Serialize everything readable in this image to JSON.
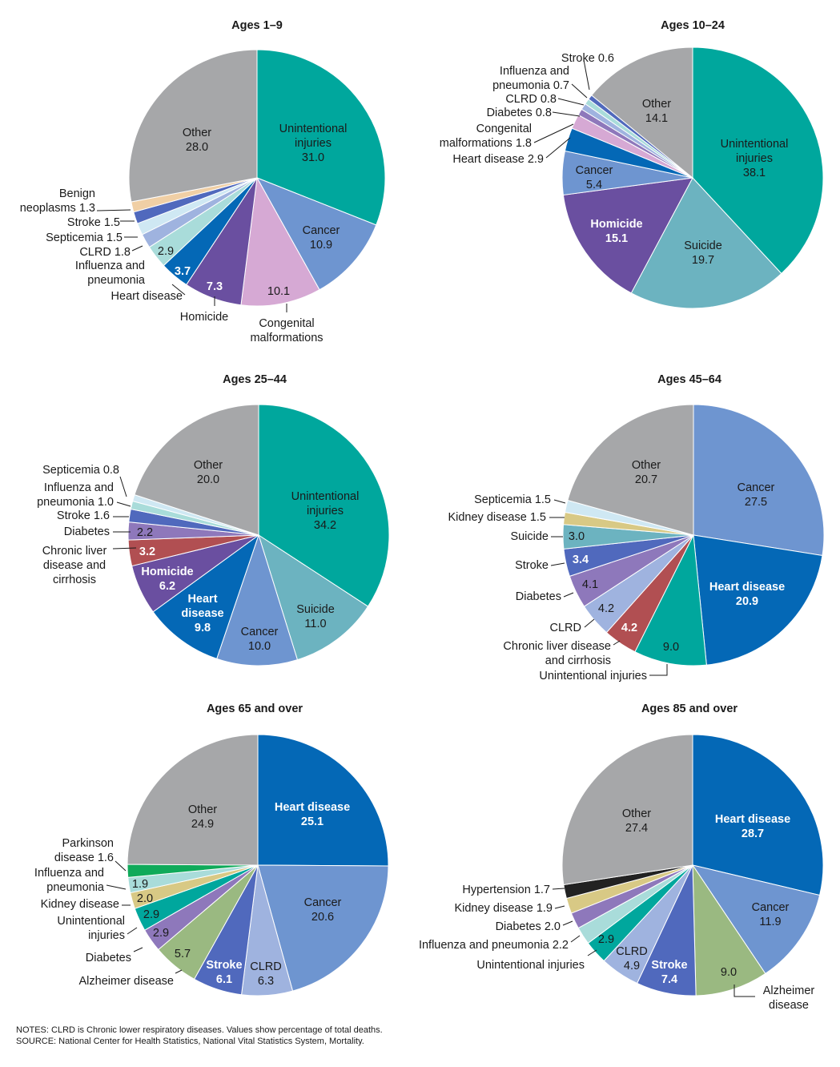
{
  "colors": {
    "Unintentional injuries": "#00a79d",
    "Cancer": "#6e95d0",
    "Congenital malformations": "#d6a9d4",
    "Homicide": "#6a4fa0",
    "Heart disease": "#0468b6",
    "Influenza and pneumonia": "#a9dcda",
    "CLRD": "#9fb3df",
    "Septicemia": "#cfe8f3",
    "Stroke": "#5069bd",
    "Benign neoplasms": "#f0cfa5",
    "Other": "#a6a7a9",
    "Suicide": "#6cb3c0",
    "Diabetes": "#8e78bb",
    "Chronic liver disease and cirrhosis": "#b14f52",
    "Kidney disease": "#d8c985",
    "Alzheimer disease": "#9ab981",
    "Parkinson disease": "#0faa5a",
    "Hypertension": "#222222"
  },
  "chart_data": [
    {
      "type": "pie",
      "title": "Ages 1–9",
      "slices": [
        {
          "label": "Unintentional injuries",
          "value": 31.0
        },
        {
          "label": "Cancer",
          "value": 10.9
        },
        {
          "label": "Congenital malformations",
          "value": 10.1
        },
        {
          "label": "Homicide",
          "value": 7.3
        },
        {
          "label": "Heart disease",
          "value": 3.7
        },
        {
          "label": "Influenza and pneumonia",
          "value": 2.9
        },
        {
          "label": "CLRD",
          "value": 1.8
        },
        {
          "label": "Septicemia",
          "value": 1.5
        },
        {
          "label": "Stroke",
          "value": 1.5
        },
        {
          "label": "Benign neoplasms",
          "value": 1.3
        },
        {
          "label": "Other",
          "value": 28.0
        }
      ],
      "texts": [
        {
          "lines": [
            "Unintentional",
            "injuries",
            "31.0"
          ]
        },
        {
          "lines": [
            "Cancer",
            "10.9"
          ]
        },
        {
          "lines": [
            "10.1"
          ]
        },
        {
          "lines": [
            "Congenital",
            "malformations"
          ]
        },
        {
          "lines": [
            "7.3"
          ]
        },
        {
          "lines": [
            "Homicide"
          ]
        },
        {
          "lines": [
            "3.7"
          ]
        },
        {
          "lines": [
            "Heart disease"
          ]
        },
        {
          "lines": [
            "2.9"
          ]
        },
        {
          "lines": [
            "Influenza and",
            "pneumonia"
          ]
        },
        {
          "lines": [
            "CLRD 1.8"
          ]
        },
        {
          "lines": [
            "Septicemia 1.5"
          ]
        },
        {
          "lines": [
            "Stroke 1.5"
          ]
        },
        {
          "lines": [
            "Benign",
            "neoplasms 1.3"
          ]
        },
        {
          "lines": [
            "Other",
            "28.0"
          ]
        }
      ]
    },
    {
      "type": "pie",
      "title": "Ages 10–24",
      "slices": [
        {
          "label": "Unintentional injuries",
          "value": 38.1
        },
        {
          "label": "Suicide",
          "value": 19.7
        },
        {
          "label": "Homicide",
          "value": 15.1
        },
        {
          "label": "Cancer",
          "value": 5.4
        },
        {
          "label": "Heart disease",
          "value": 2.9
        },
        {
          "label": "Congenital malformations",
          "value": 1.8
        },
        {
          "label": "Diabetes",
          "value": 0.8
        },
        {
          "label": "CLRD",
          "value": 0.8
        },
        {
          "label": "Influenza and pneumonia",
          "value": 0.7
        },
        {
          "label": "Stroke",
          "value": 0.6
        },
        {
          "label": "Other",
          "value": 14.1
        }
      ],
      "texts": [
        {
          "lines": [
            "Unintentional",
            "injuries",
            "38.1"
          ]
        },
        {
          "lines": [
            "Suicide",
            "19.7"
          ]
        },
        {
          "lines": [
            "Homicide",
            "15.1"
          ]
        },
        {
          "lines": [
            "Cancer",
            "5.4"
          ]
        },
        {
          "lines": [
            "Heart disease 2.9"
          ]
        },
        {
          "lines": [
            "Congenital",
            "malformations 1.8"
          ]
        },
        {
          "lines": [
            "Diabetes 0.8"
          ]
        },
        {
          "lines": [
            "CLRD 0.8"
          ]
        },
        {
          "lines": [
            "Influenza and",
            "pneumonia 0.7"
          ]
        },
        {
          "lines": [
            "Stroke 0.6"
          ]
        },
        {
          "lines": [
            "Other",
            "14.1"
          ]
        }
      ]
    },
    {
      "type": "pie",
      "title": "Ages 25–44",
      "slices": [
        {
          "label": "Unintentional injuries",
          "value": 34.2
        },
        {
          "label": "Suicide",
          "value": 11.0
        },
        {
          "label": "Cancer",
          "value": 10.0
        },
        {
          "label": "Heart disease",
          "value": 9.8
        },
        {
          "label": "Homicide",
          "value": 6.2
        },
        {
          "label": "Chronic liver disease and cirrhosis",
          "value": 3.2
        },
        {
          "label": "Diabetes",
          "value": 2.2
        },
        {
          "label": "Stroke",
          "value": 1.6
        },
        {
          "label": "Influenza and pneumonia",
          "value": 1.0
        },
        {
          "label": "Septicemia",
          "value": 0.8
        },
        {
          "label": "Other",
          "value": 20.0
        }
      ],
      "texts": [
        {
          "lines": [
            "Unintentional",
            "injuries",
            "34.2"
          ]
        },
        {
          "lines": [
            "Suicide",
            "11.0"
          ]
        },
        {
          "lines": [
            "Cancer",
            "10.0"
          ]
        },
        {
          "lines": [
            "Heart",
            "disease",
            "9.8"
          ]
        },
        {
          "lines": [
            "Homicide",
            "6.2"
          ]
        },
        {
          "lines": [
            "3.2"
          ]
        },
        {
          "lines": [
            "Chronic liver",
            "disease and",
            "cirrhosis"
          ]
        },
        {
          "lines": [
            "2.2"
          ]
        },
        {
          "lines": [
            "Diabetes"
          ]
        },
        {
          "lines": [
            "Stroke 1.6"
          ]
        },
        {
          "lines": [
            "Influenza and",
            "pneumonia 1.0"
          ]
        },
        {
          "lines": [
            "Septicemia 0.8"
          ]
        },
        {
          "lines": [
            "Other",
            "20.0"
          ]
        }
      ]
    },
    {
      "type": "pie",
      "title": "Ages 45–64",
      "slices": [
        {
          "label": "Cancer",
          "value": 27.5
        },
        {
          "label": "Heart disease",
          "value": 20.9
        },
        {
          "label": "Unintentional injuries",
          "value": 9.0
        },
        {
          "label": "Chronic liver disease and cirrhosis",
          "value": 4.2
        },
        {
          "label": "CLRD",
          "value": 4.2
        },
        {
          "label": "Diabetes",
          "value": 4.1
        },
        {
          "label": "Stroke",
          "value": 3.4
        },
        {
          "label": "Suicide",
          "value": 3.0
        },
        {
          "label": "Kidney disease",
          "value": 1.5
        },
        {
          "label": "Septicemia",
          "value": 1.5
        },
        {
          "label": "Other",
          "value": 20.7
        }
      ],
      "texts": [
        {
          "lines": [
            "Cancer",
            "27.5"
          ]
        },
        {
          "lines": [
            "Heart disease",
            "20.9"
          ]
        },
        {
          "lines": [
            "9.0"
          ]
        },
        {
          "lines": [
            "Unintentional injuries"
          ]
        },
        {
          "lines": [
            "4.2"
          ]
        },
        {
          "lines": [
            "Chronic liver disease",
            "and cirrhosis"
          ]
        },
        {
          "lines": [
            "4.2"
          ]
        },
        {
          "lines": [
            "CLRD"
          ]
        },
        {
          "lines": [
            "4.1"
          ]
        },
        {
          "lines": [
            "Diabetes"
          ]
        },
        {
          "lines": [
            "3.4"
          ]
        },
        {
          "lines": [
            "Stroke"
          ]
        },
        {
          "lines": [
            "3.0"
          ]
        },
        {
          "lines": [
            "Suicide"
          ]
        },
        {
          "lines": [
            "Kidney disease 1.5"
          ]
        },
        {
          "lines": [
            "Septicemia 1.5"
          ]
        },
        {
          "lines": [
            "Other",
            "20.7"
          ]
        }
      ]
    },
    {
      "type": "pie",
      "title": "Ages 65 and over",
      "slices": [
        {
          "label": "Heart disease",
          "value": 25.1
        },
        {
          "label": "Cancer",
          "value": 20.6
        },
        {
          "label": "CLRD",
          "value": 6.3
        },
        {
          "label": "Stroke",
          "value": 6.1
        },
        {
          "label": "Alzheimer disease",
          "value": 5.7
        },
        {
          "label": "Diabetes",
          "value": 2.9
        },
        {
          "label": "Unintentional injuries",
          "value": 2.9
        },
        {
          "label": "Kidney disease",
          "value": 2.0
        },
        {
          "label": "Influenza and pneumonia",
          "value": 1.9
        },
        {
          "label": "Parkinson disease",
          "value": 1.6
        },
        {
          "label": "Other",
          "value": 24.9
        }
      ],
      "texts": [
        {
          "lines": [
            "Heart disease",
            "25.1"
          ]
        },
        {
          "lines": [
            "Cancer",
            "20.6"
          ]
        },
        {
          "lines": [
            "CLRD",
            "6.3"
          ]
        },
        {
          "lines": [
            "Stroke",
            "6.1"
          ]
        },
        {
          "lines": [
            "5.7"
          ]
        },
        {
          "lines": [
            "Alzheimer disease"
          ]
        },
        {
          "lines": [
            "2.9"
          ]
        },
        {
          "lines": [
            "Diabetes"
          ]
        },
        {
          "lines": [
            "2.9"
          ]
        },
        {
          "lines": [
            "Unintentional",
            "injuries"
          ]
        },
        {
          "lines": [
            "2.0"
          ]
        },
        {
          "lines": [
            "Kidney disease"
          ]
        },
        {
          "lines": [
            "1.9"
          ]
        },
        {
          "lines": [
            "Influenza and",
            "pneumonia"
          ]
        },
        {
          "lines": [
            "Parkinson",
            "disease 1.6"
          ]
        },
        {
          "lines": [
            "Other",
            "24.9"
          ]
        }
      ]
    },
    {
      "type": "pie",
      "title": "Ages 85 and over",
      "slices": [
        {
          "label": "Heart disease",
          "value": 28.7
        },
        {
          "label": "Cancer",
          "value": 11.9
        },
        {
          "label": "Alzheimer disease",
          "value": 9.0
        },
        {
          "label": "Stroke",
          "value": 7.4
        },
        {
          "label": "CLRD",
          "value": 4.9
        },
        {
          "label": "Unintentional injuries",
          "value": 2.9
        },
        {
          "label": "Influenza and pneumonia",
          "value": 2.2
        },
        {
          "label": "Diabetes",
          "value": 2.0
        },
        {
          "label": "Kidney disease",
          "value": 1.9
        },
        {
          "label": "Hypertension",
          "value": 1.7
        },
        {
          "label": "Other",
          "value": 27.4
        }
      ],
      "texts": [
        {
          "lines": [
            "Heart disease",
            "28.7"
          ]
        },
        {
          "lines": [
            "Cancer",
            "11.9"
          ]
        },
        {
          "lines": [
            "9.0"
          ]
        },
        {
          "lines": [
            "Alzheimer",
            "disease"
          ]
        },
        {
          "lines": [
            "Stroke",
            "7.4"
          ]
        },
        {
          "lines": [
            "CLRD",
            "4.9"
          ]
        },
        {
          "lines": [
            "2.9"
          ]
        },
        {
          "lines": [
            "Unintentional injuries"
          ]
        },
        {
          "lines": [
            "Influenza and pneumonia 2.2"
          ]
        },
        {
          "lines": [
            "Diabetes 2.0"
          ]
        },
        {
          "lines": [
            "Kidney disease 1.9"
          ]
        },
        {
          "lines": [
            "Hypertension 1.7"
          ]
        },
        {
          "lines": [
            "Other",
            "27.4"
          ]
        }
      ]
    }
  ],
  "notes": {
    "notes": "NOTES: CLRD is Chronic lower respiratory diseases. Values show percentage of total deaths.",
    "source": "SOURCE: National Center for Health Statistics, National Vital Statistics System, Mortality."
  }
}
